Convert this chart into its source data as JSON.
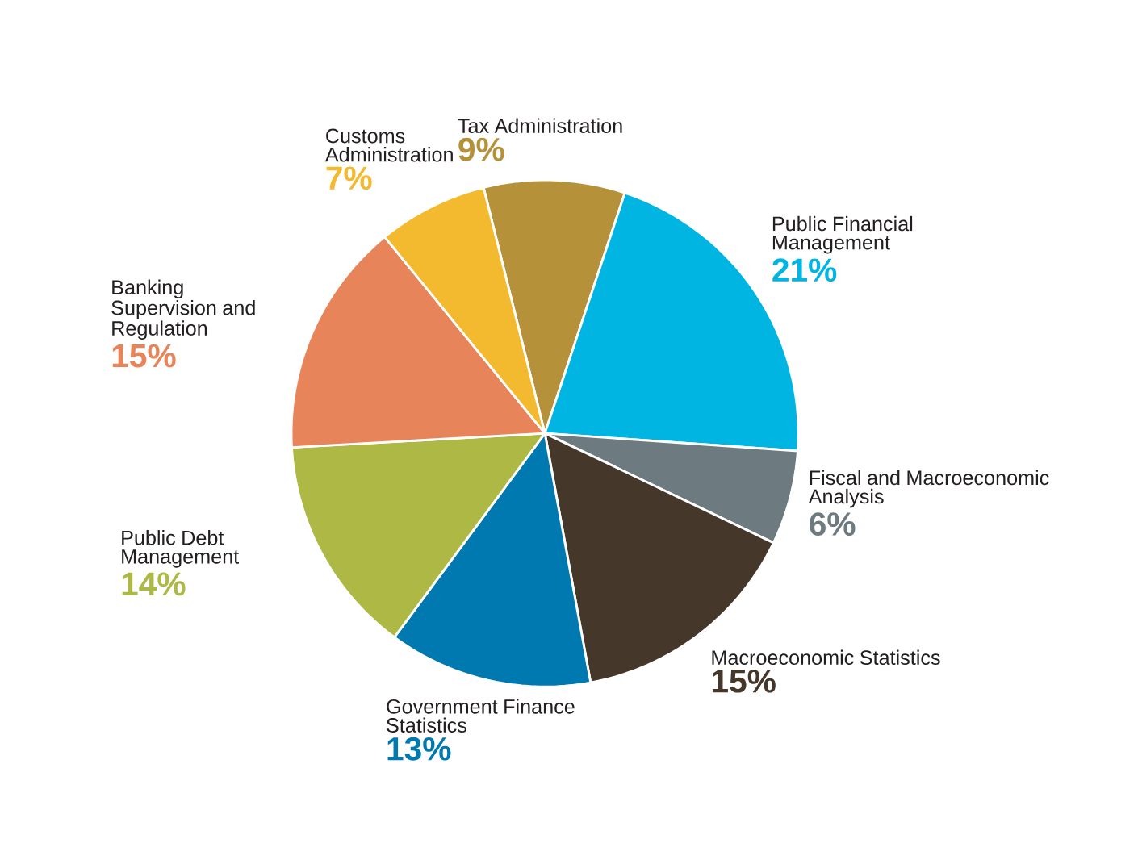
{
  "chart_data": {
    "type": "pie",
    "categories": [
      "Tax Administration",
      "Public Financial Management",
      "Fiscal and Macroeconomic Analysis",
      "Macroeconomic Statistics",
      "Government Finance Statistics",
      "Public Debt Management",
      "Banking Supervision and Regulation",
      "Customs Administration"
    ],
    "values": [
      9,
      21,
      6,
      15,
      13,
      14,
      15,
      7
    ],
    "colors": [
      "#b5913a",
      "#00b5e2",
      "#6d7a80",
      "#45372a",
      "#0079b0",
      "#adb845",
      "#e8845a",
      "#f3b92f"
    ],
    "value_labels": [
      "9%",
      "21%",
      "6%",
      "15%",
      "13%",
      "14%",
      "15%",
      "7%"
    ]
  }
}
